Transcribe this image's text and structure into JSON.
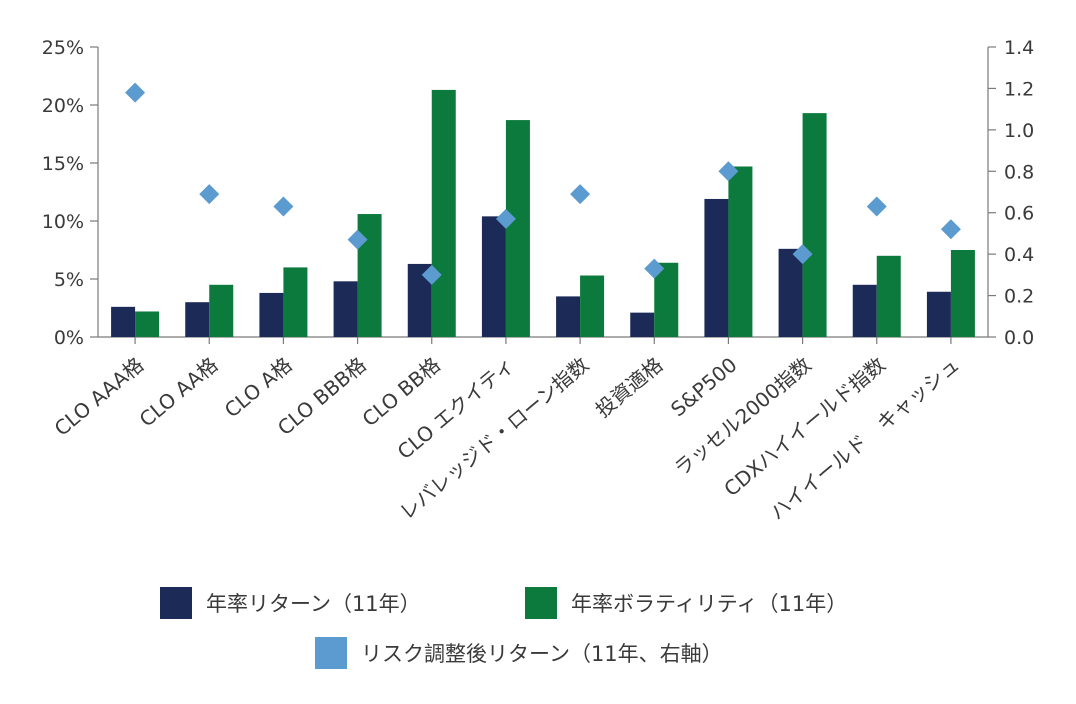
{
  "chart_data": {
    "type": "bar",
    "categories": [
      "CLO AAA格",
      "CLO AA格",
      "CLO A格",
      "CLO BBB格",
      "CLO BB格",
      "CLO エクイティ",
      "レバレッジド・ローン指数",
      "投資適格",
      "S&P500",
      "ラッセル2000指数",
      "CDXハイイールド指数",
      "ハイイールド　キャッシュ"
    ],
    "series": [
      {
        "name": "年率リターン（11年）",
        "type": "bar",
        "axis": "left",
        "values": [
          2.6,
          3.0,
          3.8,
          4.8,
          6.3,
          10.4,
          3.5,
          2.1,
          11.9,
          7.6,
          4.5,
          3.9
        ]
      },
      {
        "name": "年率ボラティリティ（11年）",
        "type": "bar",
        "axis": "left",
        "values": [
          2.2,
          4.5,
          6.0,
          10.6,
          21.3,
          18.7,
          5.3,
          6.4,
          14.7,
          19.3,
          7.0,
          7.5
        ]
      },
      {
        "name": "リスク調整後リターン（11年、右軸）",
        "type": "scatter",
        "axis": "right",
        "values": [
          1.18,
          0.69,
          0.63,
          0.47,
          0.3,
          0.57,
          0.69,
          0.33,
          0.8,
          0.4,
          0.63,
          0.52
        ]
      }
    ],
    "y_left": {
      "min": 0,
      "max": 25,
      "ticks": [
        0,
        5,
        10,
        15,
        20,
        25
      ],
      "tick_labels": [
        "0%",
        "5%",
        "10%",
        "15%",
        "20%",
        "25%"
      ]
    },
    "y_right": {
      "min": 0,
      "max": 1.4,
      "ticks": [
        0,
        0.2,
        0.4,
        0.6,
        0.8,
        1.0,
        1.2,
        1.4
      ],
      "tick_labels": [
        "0.0",
        "0.2",
        "0.4",
        "0.6",
        "0.8",
        "1.0",
        "1.2",
        "1.4"
      ]
    },
    "grid": false,
    "legend_position": "bottom",
    "colors": {
      "return": "#1b2a57",
      "volatility": "#0b7a3c",
      "risk_adjusted": "#5b9bd0",
      "axis": "#7a7a7a"
    }
  },
  "legend": {
    "return_label": "年率リターン（11年）",
    "volatility_label": "年率ボラティリティ（11年）",
    "risk_adjusted_label": "リスク調整後リターン（11年、右軸）"
  }
}
